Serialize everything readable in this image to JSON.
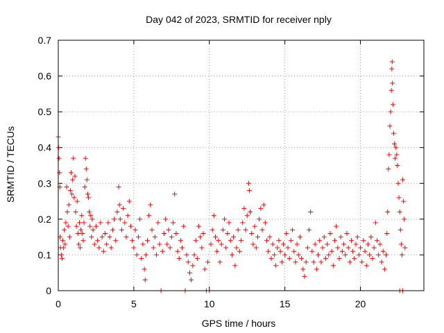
{
  "chart_data": {
    "type": "scatter",
    "title": "Day 042 of 2023, SRMTID for receiver nply",
    "xlabel": "GPS time / hours",
    "ylabel": "SRMTID / TECUs",
    "xlim": [
      0,
      24.2
    ],
    "ylim": [
      0,
      0.7
    ],
    "x_ticks": [
      0,
      5,
      10,
      15,
      20
    ],
    "y_ticks": [
      0,
      0.1,
      0.2,
      0.3,
      0.4,
      0.5,
      0.6,
      0.7
    ],
    "x_tick_labels": [
      "0",
      "5",
      "10",
      "15",
      "20"
    ],
    "y_tick_labels": [
      "0",
      "0.1",
      "0.2",
      "0.3",
      "0.4",
      "0.5",
      "0.6",
      "0.7"
    ],
    "grid": true,
    "marker": "+",
    "color": "#ff0000",
    "series": [
      {
        "name": "SRMTID",
        "points": [
          [
            0.0,
            0.43
          ],
          [
            0.03,
            0.4
          ],
          [
            0.05,
            0.37
          ],
          [
            0.08,
            0.33
          ],
          [
            0.1,
            0.29
          ],
          [
            0.12,
            0.15
          ],
          [
            0.15,
            0.12
          ],
          [
            0.2,
            0.1
          ],
          [
            0.25,
            0.09
          ],
          [
            0.3,
            0.14
          ],
          [
            0.35,
            0.12
          ],
          [
            0.4,
            0.17
          ],
          [
            0.45,
            0.13
          ],
          [
            0.5,
            0.19
          ],
          [
            0.55,
            0.29
          ],
          [
            0.6,
            0.22
          ],
          [
            0.65,
            0.18
          ],
          [
            0.7,
            0.24
          ],
          [
            0.75,
            0.15
          ],
          [
            0.8,
            0.28
          ],
          [
            0.85,
            0.33
          ],
          [
            0.9,
            0.27
          ],
          [
            0.95,
            0.31
          ],
          [
            1.0,
            0.37
          ],
          [
            1.05,
            0.26
          ],
          [
            1.1,
            0.32
          ],
          [
            1.15,
            0.22
          ],
          [
            1.2,
            0.18
          ],
          [
            1.25,
            0.25
          ],
          [
            1.3,
            0.16
          ],
          [
            1.35,
            0.13
          ],
          [
            1.4,
            0.19
          ],
          [
            1.45,
            0.12
          ],
          [
            1.5,
            0.17
          ],
          [
            1.55,
            0.21
          ],
          [
            1.6,
            0.16
          ],
          [
            1.65,
            0.14
          ],
          [
            1.7,
            0.19
          ],
          [
            1.75,
            0.29
          ],
          [
            1.8,
            0.37
          ],
          [
            1.85,
            0.34
          ],
          [
            1.9,
            0.31
          ],
          [
            1.95,
            0.27
          ],
          [
            2.0,
            0.26
          ],
          [
            2.05,
            0.22
          ],
          [
            2.1,
            0.18
          ],
          [
            2.15,
            0.21
          ],
          [
            2.2,
            0.15
          ],
          [
            2.25,
            0.2
          ],
          [
            2.3,
            0.17
          ],
          [
            2.4,
            0.13
          ],
          [
            2.5,
            0.18
          ],
          [
            2.6,
            0.14
          ],
          [
            2.7,
            0.12
          ],
          [
            2.8,
            0.19
          ],
          [
            2.9,
            0.15
          ],
          [
            3.0,
            0.11
          ],
          [
            3.1,
            0.16
          ],
          [
            3.2,
            0.13
          ],
          [
            3.3,
            0.19
          ],
          [
            3.4,
            0.15
          ],
          [
            3.5,
            0.12
          ],
          [
            3.6,
            0.17
          ],
          [
            3.7,
            0.2
          ],
          [
            3.8,
            0.14
          ],
          [
            3.9,
            0.22
          ],
          [
            4.0,
            0.29
          ],
          [
            4.05,
            0.24
          ],
          [
            4.1,
            0.2
          ],
          [
            4.2,
            0.17
          ],
          [
            4.3,
            0.23
          ],
          [
            4.4,
            0.19
          ],
          [
            4.5,
            0.15
          ],
          [
            4.6,
            0.21
          ],
          [
            4.7,
            0.25
          ],
          [
            4.8,
            0.18
          ],
          [
            4.9,
            0.14
          ],
          [
            5.0,
            0.12
          ],
          [
            5.1,
            0.17
          ],
          [
            5.2,
            0.1
          ],
          [
            5.3,
            0.15
          ],
          [
            5.4,
            0.2
          ],
          [
            5.5,
            0.09
          ],
          [
            5.6,
            0.13
          ],
          [
            5.7,
            0.06
          ],
          [
            5.75,
            0.03
          ],
          [
            5.8,
            0.1
          ],
          [
            5.9,
            0.14
          ],
          [
            6.0,
            0.21
          ],
          [
            6.1,
            0.24
          ],
          [
            6.2,
            0.17
          ],
          [
            6.3,
            0.12
          ],
          [
            6.4,
            0.15
          ],
          [
            6.5,
            0.1
          ],
          [
            6.6,
            0.19
          ],
          [
            6.7,
            0.13
          ],
          [
            6.8,
            0.0
          ],
          [
            6.9,
            0.11
          ],
          [
            7.0,
            0.16
          ],
          [
            7.1,
            0.2
          ],
          [
            7.2,
            0.13
          ],
          [
            7.3,
            0.17
          ],
          [
            7.4,
            0.12
          ],
          [
            7.5,
            0.15
          ],
          [
            7.6,
            0.19
          ],
          [
            7.7,
            0.27
          ],
          [
            7.8,
            0.16
          ],
          [
            7.9,
            0.11
          ],
          [
            8.0,
            0.09
          ],
          [
            8.1,
            0.14
          ],
          [
            8.2,
            0.12
          ],
          [
            8.3,
            0.18
          ],
          [
            8.4,
            0.0
          ],
          [
            8.5,
            0.1
          ],
          [
            8.6,
            0.08
          ],
          [
            8.7,
            0.05
          ],
          [
            8.8,
            0.03
          ],
          [
            8.9,
            0.07
          ],
          [
            9.0,
            0.1
          ],
          [
            9.1,
            0.14
          ],
          [
            9.2,
            0.09
          ],
          [
            9.3,
            0.18
          ],
          [
            9.4,
            0.15
          ],
          [
            9.5,
            0.12
          ],
          [
            9.6,
            0.16
          ],
          [
            9.7,
            0.06
          ],
          [
            9.8,
            0.0
          ],
          [
            9.9,
            0.08
          ],
          [
            10.0,
            0.0
          ],
          [
            10.1,
            0.13
          ],
          [
            10.2,
            0.17
          ],
          [
            10.3,
            0.21
          ],
          [
            10.4,
            0.15
          ],
          [
            10.5,
            0.11
          ],
          [
            10.6,
            0.14
          ],
          [
            10.7,
            0.08
          ],
          [
            10.8,
            0.13
          ],
          [
            10.9,
            0.17
          ],
          [
            11.0,
            0.2
          ],
          [
            11.1,
            0.12
          ],
          [
            11.2,
            0.16
          ],
          [
            11.3,
            0.19
          ],
          [
            11.4,
            0.14
          ],
          [
            11.5,
            0.1
          ],
          [
            11.6,
            0.15
          ],
          [
            11.7,
            0.07
          ],
          [
            11.8,
            0.12
          ],
          [
            11.9,
            0.17
          ],
          [
            12.0,
            0.11
          ],
          [
            12.1,
            0.14
          ],
          [
            12.2,
            0.19
          ],
          [
            12.3,
            0.23
          ],
          [
            12.4,
            0.17
          ],
          [
            12.5,
            0.21
          ],
          [
            12.6,
            0.3
          ],
          [
            12.65,
            0.28
          ],
          [
            12.7,
            0.22
          ],
          [
            12.8,
            0.16
          ],
          [
            12.9,
            0.13
          ],
          [
            13.0,
            0.18
          ],
          [
            13.1,
            0.12
          ],
          [
            13.2,
            0.15
          ],
          [
            13.3,
            0.2
          ],
          [
            13.4,
            0.23
          ],
          [
            13.5,
            0.17
          ],
          [
            13.6,
            0.24
          ],
          [
            13.7,
            0.19
          ],
          [
            13.8,
            0.14
          ],
          [
            13.9,
            0.11
          ],
          [
            14.0,
            0.15
          ],
          [
            14.1,
            0.09
          ],
          [
            14.2,
            0.13
          ],
          [
            14.3,
            0.1
          ],
          [
            14.4,
            0.07
          ],
          [
            14.5,
            0.12
          ],
          [
            14.6,
            0.14
          ],
          [
            14.7,
            0.11
          ],
          [
            14.8,
            0.08
          ],
          [
            14.9,
            0.13
          ],
          [
            15.0,
            0.1
          ],
          [
            15.1,
            0.16
          ],
          [
            15.2,
            0.12
          ],
          [
            15.3,
            0.09
          ],
          [
            15.4,
            0.14
          ],
          [
            15.5,
            0.17
          ],
          [
            15.6,
            0.11
          ],
          [
            15.7,
            0.08
          ],
          [
            15.8,
            0.13
          ],
          [
            15.9,
            0.1
          ],
          [
            16.0,
            0.15
          ],
          [
            16.1,
            0.09
          ],
          [
            16.2,
            0.06
          ],
          [
            16.3,
            0.04
          ],
          [
            16.4,
            0.08
          ],
          [
            16.5,
            0.12
          ],
          [
            16.6,
            0.17
          ],
          [
            16.7,
            0.22
          ],
          [
            16.8,
            0.11
          ],
          [
            16.9,
            0.08
          ],
          [
            17.0,
            0.13
          ],
          [
            17.1,
            0.06
          ],
          [
            17.2,
            0.1
          ],
          [
            17.3,
            0.14
          ],
          [
            17.4,
            0.08
          ],
          [
            17.5,
            0.12
          ],
          [
            17.6,
            0.15
          ],
          [
            17.7,
            0.09
          ],
          [
            17.8,
            0.13
          ],
          [
            17.9,
            0.1
          ],
          [
            18.0,
            0.16
          ],
          [
            18.1,
            0.11
          ],
          [
            18.2,
            0.07
          ],
          [
            18.3,
            0.14
          ],
          [
            18.4,
            0.18
          ],
          [
            18.5,
            0.12
          ],
          [
            18.6,
            0.09
          ],
          [
            18.7,
            0.15
          ],
          [
            18.8,
            0.11
          ],
          [
            18.9,
            0.13
          ],
          [
            19.0,
            0.1
          ],
          [
            19.1,
            0.16
          ],
          [
            19.2,
            0.12
          ],
          [
            19.3,
            0.08
          ],
          [
            19.4,
            0.14
          ],
          [
            19.5,
            0.11
          ],
          [
            19.6,
            0.09
          ],
          [
            19.7,
            0.13
          ],
          [
            19.8,
            0.15
          ],
          [
            19.9,
            0.1
          ],
          [
            20.0,
            0.12
          ],
          [
            20.1,
            0.08
          ],
          [
            20.2,
            0.14
          ],
          [
            20.3,
            0.11
          ],
          [
            20.4,
            0.07
          ],
          [
            20.5,
            0.13
          ],
          [
            20.6,
            0.1
          ],
          [
            20.7,
            0.15
          ],
          [
            20.8,
            0.09
          ],
          [
            20.9,
            0.12
          ],
          [
            21.0,
            0.19
          ],
          [
            21.1,
            0.14
          ],
          [
            21.2,
            0.1
          ],
          [
            21.3,
            0.13
          ],
          [
            21.4,
            0.08
          ],
          [
            21.5,
            0.11
          ],
          [
            21.6,
            0.06
          ],
          [
            21.7,
            0.1
          ],
          [
            21.75,
            0.16
          ],
          [
            21.8,
            0.22
          ],
          [
            21.85,
            0.34
          ],
          [
            21.9,
            0.38
          ],
          [
            21.95,
            0.46
          ],
          [
            22.0,
            0.5
          ],
          [
            22.05,
            0.56
          ],
          [
            22.08,
            0.62
          ],
          [
            22.1,
            0.64
          ],
          [
            22.12,
            0.58
          ],
          [
            22.15,
            0.52
          ],
          [
            22.2,
            0.44
          ],
          [
            22.25,
            0.41
          ],
          [
            22.3,
            0.37
          ],
          [
            22.35,
            0.4
          ],
          [
            22.4,
            0.38
          ],
          [
            22.45,
            0.35
          ],
          [
            22.5,
            0.3
          ],
          [
            22.55,
            0.26
          ],
          [
            22.6,
            0.22
          ],
          [
            22.65,
            0.17
          ],
          [
            22.7,
            0.13
          ],
          [
            22.75,
            0.1
          ],
          [
            22.8,
            0.31
          ],
          [
            22.85,
            0.25
          ],
          [
            22.9,
            0.2
          ],
          [
            22.95,
            0.12
          ],
          [
            22.6,
            0.0
          ],
          [
            22.8,
            0.0
          ]
        ]
      }
    ]
  }
}
